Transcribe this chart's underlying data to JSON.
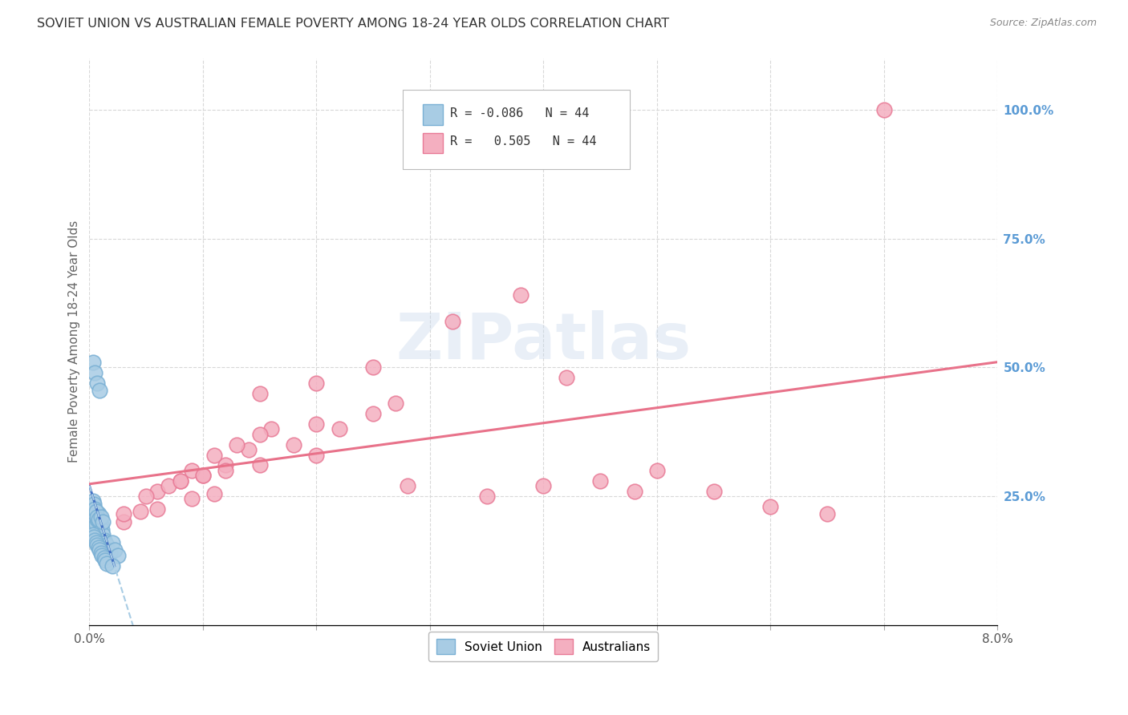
{
  "title": "SOVIET UNION VS AUSTRALIAN FEMALE POVERTY AMONG 18-24 YEAR OLDS CORRELATION CHART",
  "source": "Source: ZipAtlas.com",
  "ylabel": "Female Poverty Among 18-24 Year Olds",
  "ytick_labels": [
    "100.0%",
    "75.0%",
    "50.0%",
    "25.0%"
  ],
  "ytick_values": [
    1.0,
    0.75,
    0.5,
    0.25
  ],
  "legend_r_labels": [
    {
      "r": "-0.086",
      "n": "44"
    },
    {
      "r": " 0.505",
      "n": "44"
    }
  ],
  "soviet_x": [
    0.0002,
    0.0003,
    0.0004,
    0.0005,
    0.0006,
    0.0007,
    0.0008,
    0.0009,
    0.001,
    0.0011,
    0.0012,
    0.0013,
    0.0014,
    0.0015,
    0.0016,
    0.0018,
    0.002,
    0.0022,
    0.0025,
    0.0003,
    0.0004,
    0.0005,
    0.0006,
    0.0007,
    0.0008,
    0.001,
    0.0012,
    0.0003,
    0.0004,
    0.0005,
    0.0006,
    0.0007,
    0.0008,
    0.0009,
    0.001,
    0.0011,
    0.0013,
    0.0014,
    0.0015,
    0.002,
    0.0003,
    0.0005,
    0.0007,
    0.0009
  ],
  "soviet_y": [
    0.2,
    0.195,
    0.19,
    0.185,
    0.195,
    0.205,
    0.215,
    0.2,
    0.195,
    0.185,
    0.175,
    0.165,
    0.16,
    0.155,
    0.145,
    0.14,
    0.16,
    0.145,
    0.135,
    0.24,
    0.235,
    0.225,
    0.22,
    0.21,
    0.205,
    0.21,
    0.2,
    0.175,
    0.17,
    0.165,
    0.16,
    0.155,
    0.15,
    0.145,
    0.14,
    0.135,
    0.13,
    0.125,
    0.12,
    0.115,
    0.51,
    0.49,
    0.47,
    0.455
  ],
  "australian_x": [
    0.003,
    0.0045,
    0.006,
    0.008,
    0.01,
    0.012,
    0.014,
    0.016,
    0.005,
    0.007,
    0.009,
    0.011,
    0.013,
    0.015,
    0.02,
    0.025,
    0.008,
    0.01,
    0.012,
    0.018,
    0.022,
    0.027,
    0.032,
    0.038,
    0.042,
    0.045,
    0.05,
    0.055,
    0.06,
    0.065,
    0.003,
    0.006,
    0.009,
    0.011,
    0.015,
    0.02,
    0.028,
    0.035,
    0.04,
    0.048,
    0.015,
    0.02,
    0.025,
    0.07
  ],
  "australian_y": [
    0.2,
    0.22,
    0.26,
    0.28,
    0.29,
    0.31,
    0.34,
    0.38,
    0.25,
    0.27,
    0.3,
    0.33,
    0.35,
    0.37,
    0.39,
    0.41,
    0.28,
    0.29,
    0.3,
    0.35,
    0.38,
    0.43,
    0.59,
    0.64,
    0.48,
    0.28,
    0.3,
    0.26,
    0.23,
    0.215,
    0.215,
    0.225,
    0.245,
    0.255,
    0.31,
    0.33,
    0.27,
    0.25,
    0.27,
    0.26,
    0.45,
    0.47,
    0.5,
    1.0
  ],
  "watermark": "ZIPatlas",
  "bg_color": "#ffffff",
  "grid_color": "#d8d8d8",
  "title_color": "#333333",
  "axis_label_color": "#666666",
  "right_tick_color": "#5b9bd5",
  "soviet_dot_color": "#a8cce4",
  "soviet_dot_edge": "#7ab0d4",
  "australian_dot_color": "#f4afc0",
  "australian_dot_edge": "#e87a96",
  "soviet_line_color": "#4472c4",
  "australian_line_color": "#e8728a",
  "soviet_dash_color": "#a8cce4",
  "xmin": 0.0,
  "xmax": 0.08,
  "ymin": 0.0,
  "ymax": 1.1
}
